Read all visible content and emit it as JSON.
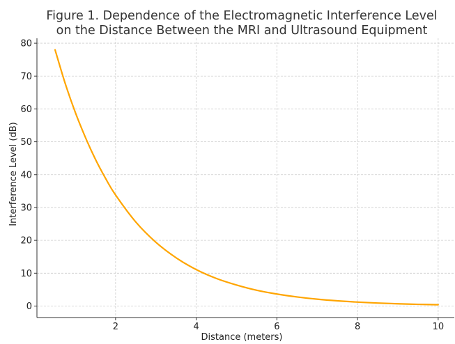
{
  "chart_data": {
    "type": "line",
    "title_lines": [
      "Figure 1. Dependence of the Electromagnetic Interference Level",
      "on the Distance Between the MRI and Ultrasound Equipment"
    ],
    "xlabel": "Distance (meters)",
    "ylabel": "Interference Level (dB)",
    "xlim": [
      0.05,
      10.4
    ],
    "ylim": [
      -3.5,
      81.5
    ],
    "xticks": [
      2,
      4,
      6,
      8,
      10
    ],
    "yticks": [
      0,
      10,
      20,
      30,
      40,
      50,
      60,
      70,
      80
    ],
    "grid": true,
    "series": [
      {
        "color": "#FFA500",
        "x": [
          0.5,
          0.75,
          1.0,
          1.25,
          1.5,
          1.75,
          2.0,
          2.5,
          3.0,
          3.5,
          4.0,
          4.5,
          5.0,
          5.5,
          6.0,
          6.5,
          7.0,
          7.5,
          8.0,
          8.5,
          9.0,
          9.5,
          10.0
        ],
        "y": [
          78.0,
          67.8,
          59.0,
          51.4,
          44.7,
          38.9,
          33.8,
          25.6,
          19.4,
          14.7,
          11.1,
          8.4,
          6.4,
          4.8,
          3.65,
          2.76,
          2.09,
          1.58,
          1.2,
          0.91,
          0.69,
          0.52,
          0.39
        ]
      }
    ]
  }
}
